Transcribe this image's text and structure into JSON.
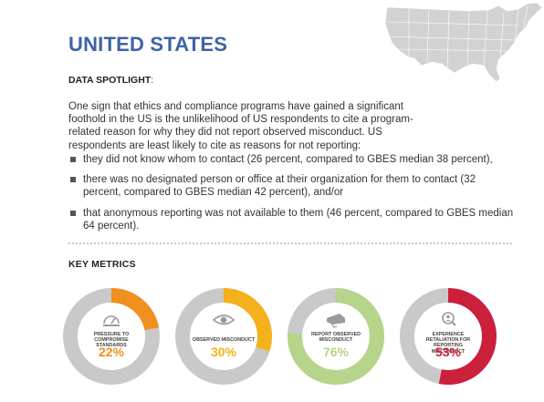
{
  "title": "UNITED STATES",
  "spotlight_label": "DATA SPOTLIGHT",
  "spotlight_colon": ":",
  "intro": "One sign that ethics and compliance programs have gained a significant foothold in the US is the unlikelihood of US respondents to cite a program-related reason for why they did not report observed misconduct. US respondents are least likely to cite as reasons for not reporting:",
  "bullets": [
    "they did not know whom to contact (26 percent, compared to GBES median 38 percent),",
    "there was no designated person or office at their organization for them to contact (32 percent, compared to GBES median 42 percent), and/or",
    "that anonymous reporting was not available to them (46 percent, compared to GBES median 64 percent)."
  ],
  "key_metrics_title": "KEY METRICS",
  "metrics": [
    {
      "label": "PRESSURE TO COMPROMISE STANDARDS",
      "value": "22%",
      "fraction": 0.22,
      "color": "#f0901e",
      "icon": "gauge-icon"
    },
    {
      "label": "OBSERVED MISCONDUCT",
      "value": "30%",
      "fraction": 0.3,
      "color": "#f4b11c",
      "icon": "eye-icon"
    },
    {
      "label": "REPORT OBSERVED MISCONDUCT",
      "value": "76%",
      "fraction": 0.76,
      "color": "#b6d48a",
      "icon": "megaphone-icon"
    },
    {
      "label": "EXPERIENCE RETALIATION FOR REPORTING MISCONDUCT",
      "value": "53%",
      "fraction": 0.53,
      "color": "#cc1f3c",
      "icon": "person-search-icon"
    }
  ],
  "colors": {
    "title": "#3f63a5",
    "ring_track": "#c9c9c9"
  }
}
